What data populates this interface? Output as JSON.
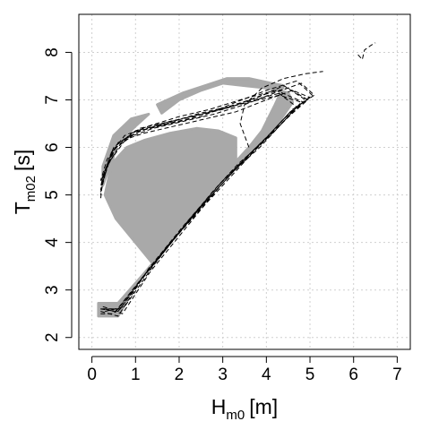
{
  "chart_data": {
    "type": "line",
    "title": "",
    "xlabel": {
      "main": "H",
      "sub": "m0",
      "unit": "[m]"
    },
    "ylabel": {
      "main": "T",
      "sub": "m02",
      "unit": "[s]"
    },
    "xlim": [
      -0.3,
      7.3
    ],
    "ylim": [
      1.75,
      8.8
    ],
    "x_ticks": [
      0,
      1,
      2,
      3,
      4,
      5,
      6,
      7
    ],
    "x_tick_labels": [
      "0",
      "1",
      "2",
      "3",
      "4",
      "5",
      "6",
      "7"
    ],
    "y_ticks": [
      2,
      3,
      4,
      5,
      6,
      7,
      8
    ],
    "y_tick_labels": [
      "2",
      "3",
      "4",
      "5",
      "6",
      "7",
      "8"
    ],
    "grid": true,
    "colors": {
      "envelope": "#a9a9a9",
      "dashed_series": "#000000",
      "grid": "#cfcfcf"
    },
    "envelope": [
      [
        0.15,
        2.72
      ],
      [
        0.6,
        2.72
      ],
      [
        1.2,
        3.35
      ],
      [
        2.0,
        4.22
      ],
      [
        2.8,
        5.12
      ],
      [
        3.4,
        5.72
      ],
      [
        3.9,
        6.12
      ],
      [
        4.3,
        6.55
      ],
      [
        4.6,
        6.95
      ],
      [
        4.5,
        7.15
      ],
      [
        4.0,
        7.25
      ],
      [
        3.5,
        7.3
      ],
      [
        3.0,
        7.35
      ],
      [
        2.5,
        7.2
      ],
      [
        2.0,
        7.0
      ],
      [
        1.6,
        6.72
      ],
      [
        1.5,
        6.9
      ],
      [
        2.1,
        7.15
      ],
      [
        2.6,
        7.3
      ],
      [
        3.1,
        7.45
      ],
      [
        3.6,
        7.45
      ],
      [
        4.1,
        7.35
      ],
      [
        4.4,
        7.3
      ],
      [
        4.2,
        6.9
      ],
      [
        3.9,
        6.35
      ],
      [
        3.6,
        6.0
      ],
      [
        3.3,
        5.7
      ],
      [
        3.3,
        6.2
      ],
      [
        2.9,
        6.35
      ],
      [
        2.4,
        6.4
      ],
      [
        1.8,
        6.3
      ],
      [
        1.2,
        6.15
      ],
      [
        0.8,
        6.0
      ],
      [
        0.4,
        5.6
      ],
      [
        0.25,
        5.2
      ],
      [
        0.25,
        5.6
      ],
      [
        0.5,
        6.25
      ],
      [
        0.9,
        6.6
      ],
      [
        1.3,
        6.7
      ],
      [
        1.0,
        6.45
      ],
      [
        0.55,
        6.05
      ],
      [
        0.3,
        5.0
      ],
      [
        0.55,
        4.5
      ],
      [
        1.4,
        3.55
      ],
      [
        0.9,
        3.0
      ],
      [
        0.7,
        2.6
      ],
      [
        0.6,
        2.45
      ],
      [
        0.15,
        2.45
      ]
    ],
    "series_count": 10,
    "series": [
      {
        "values": [
          [
            0.2,
            2.6
          ],
          [
            0.55,
            2.55
          ],
          [
            1.2,
            3.3
          ],
          [
            2.0,
            4.2
          ],
          [
            2.8,
            5.0
          ],
          [
            3.4,
            5.6
          ],
          [
            3.9,
            6.1
          ],
          [
            4.4,
            6.6
          ],
          [
            4.9,
            7.0
          ],
          [
            4.4,
            7.3
          ],
          [
            3.8,
            7.05
          ],
          [
            3.1,
            6.85
          ],
          [
            2.4,
            6.7
          ],
          [
            1.7,
            6.5
          ],
          [
            1.0,
            6.35
          ],
          [
            0.5,
            6.0
          ],
          [
            0.25,
            5.4
          ],
          [
            0.2,
            5.15
          ]
        ]
      },
      {
        "values": [
          [
            0.2,
            2.55
          ],
          [
            0.6,
            2.45
          ],
          [
            1.3,
            3.45
          ],
          [
            2.1,
            4.35
          ],
          [
            2.9,
            5.2
          ],
          [
            3.5,
            5.75
          ],
          [
            4.0,
            6.2
          ],
          [
            4.5,
            6.7
          ],
          [
            5.0,
            7.05
          ],
          [
            4.6,
            7.2
          ],
          [
            4.0,
            7.0
          ],
          [
            3.3,
            6.75
          ],
          [
            2.6,
            6.6
          ],
          [
            1.9,
            6.45
          ],
          [
            1.2,
            6.3
          ],
          [
            0.7,
            6.15
          ],
          [
            0.35,
            5.6
          ],
          [
            0.2,
            5.05
          ]
        ]
      },
      {
        "values": [
          [
            0.25,
            2.6
          ],
          [
            0.65,
            2.6
          ],
          [
            1.15,
            3.25
          ],
          [
            1.9,
            4.1
          ],
          [
            2.7,
            4.95
          ],
          [
            3.3,
            5.55
          ],
          [
            3.85,
            6.0
          ],
          [
            4.3,
            6.45
          ],
          [
            4.8,
            6.95
          ],
          [
            4.3,
            7.1
          ],
          [
            3.6,
            6.95
          ],
          [
            2.9,
            6.8
          ],
          [
            2.2,
            6.6
          ],
          [
            1.5,
            6.45
          ],
          [
            0.9,
            6.3
          ],
          [
            0.45,
            5.9
          ],
          [
            0.22,
            5.3
          ]
        ]
      },
      {
        "values": [
          [
            0.3,
            2.55
          ],
          [
            0.75,
            2.65
          ],
          [
            1.4,
            3.5
          ],
          [
            2.2,
            4.45
          ],
          [
            3.0,
            5.3
          ],
          [
            3.6,
            5.85
          ],
          [
            4.1,
            6.3
          ],
          [
            4.6,
            6.8
          ],
          [
            5.1,
            7.1
          ],
          [
            4.8,
            7.35
          ],
          [
            4.2,
            7.15
          ],
          [
            3.5,
            6.9
          ],
          [
            2.8,
            6.7
          ],
          [
            2.1,
            6.55
          ],
          [
            1.4,
            6.4
          ],
          [
            0.8,
            6.2
          ],
          [
            0.4,
            5.7
          ],
          [
            0.22,
            5.2
          ]
        ]
      },
      {
        "values": [
          [
            0.2,
            2.5
          ],
          [
            0.5,
            2.5
          ],
          [
            1.1,
            3.2
          ],
          [
            1.8,
            4.0
          ],
          [
            2.6,
            4.85
          ],
          [
            3.2,
            5.45
          ],
          [
            3.75,
            5.95
          ],
          [
            4.25,
            6.4
          ],
          [
            4.7,
            6.85
          ],
          [
            4.2,
            7.2
          ],
          [
            3.4,
            7.0
          ],
          [
            2.7,
            6.8
          ],
          [
            2.0,
            6.65
          ],
          [
            1.3,
            6.45
          ],
          [
            0.75,
            6.25
          ],
          [
            0.35,
            5.75
          ],
          [
            0.2,
            5.3
          ]
        ]
      },
      {
        "values": [
          [
            0.3,
            2.6
          ],
          [
            0.7,
            2.5
          ],
          [
            1.35,
            3.4
          ],
          [
            2.15,
            4.3
          ],
          [
            2.95,
            5.2
          ],
          [
            3.55,
            5.8
          ],
          [
            4.05,
            6.25
          ],
          [
            4.55,
            6.75
          ],
          [
            5.05,
            7.1
          ],
          [
            4.7,
            7.4
          ],
          [
            4.0,
            7.2
          ],
          [
            3.3,
            6.95
          ],
          [
            2.5,
            6.65
          ],
          [
            1.8,
            6.5
          ],
          [
            1.1,
            6.35
          ],
          [
            0.6,
            6.1
          ],
          [
            0.3,
            5.5
          ],
          [
            0.2,
            5.0
          ]
        ]
      },
      {
        "values": [
          [
            0.25,
            2.65
          ],
          [
            0.6,
            2.55
          ],
          [
            1.25,
            3.35
          ],
          [
            2.05,
            4.25
          ],
          [
            2.85,
            5.1
          ],
          [
            3.45,
            5.7
          ],
          [
            3.95,
            6.15
          ],
          [
            4.45,
            6.6
          ],
          [
            4.95,
            7.0
          ],
          [
            4.5,
            7.25
          ],
          [
            3.9,
            7.1
          ],
          [
            3.2,
            6.85
          ],
          [
            2.5,
            6.7
          ],
          [
            1.8,
            6.55
          ],
          [
            1.1,
            6.4
          ],
          [
            0.55,
            6.05
          ],
          [
            0.28,
            5.45
          ],
          [
            0.2,
            5.1
          ]
        ]
      },
      {
        "values": [
          [
            0.2,
            2.6
          ],
          [
            0.6,
            2.6
          ],
          [
            1.2,
            3.3
          ],
          [
            2.0,
            4.2
          ],
          [
            2.75,
            5.05
          ],
          [
            3.35,
            5.65
          ],
          [
            3.85,
            6.05
          ],
          [
            4.35,
            6.5
          ],
          [
            4.85,
            6.95
          ],
          [
            4.35,
            7.15
          ],
          [
            3.7,
            7.0
          ],
          [
            3.0,
            6.8
          ],
          [
            2.3,
            6.65
          ],
          [
            1.6,
            6.5
          ],
          [
            1.0,
            6.3
          ],
          [
            0.5,
            5.95
          ],
          [
            0.25,
            5.35
          ],
          [
            0.2,
            4.9
          ]
        ]
      },
      {
        "values": [
          [
            3.6,
            6.0
          ],
          [
            3.4,
            6.5
          ],
          [
            3.5,
            6.9
          ],
          [
            3.9,
            7.25
          ],
          [
            4.4,
            7.45
          ],
          [
            4.9,
            7.55
          ],
          [
            5.3,
            7.6
          ]
        ]
      },
      {
        "values": [
          [
            6.1,
            7.95
          ],
          [
            6.2,
            7.85
          ],
          [
            6.25,
            8.05
          ],
          [
            6.4,
            8.15
          ],
          [
            6.5,
            8.2
          ]
        ]
      }
    ]
  }
}
